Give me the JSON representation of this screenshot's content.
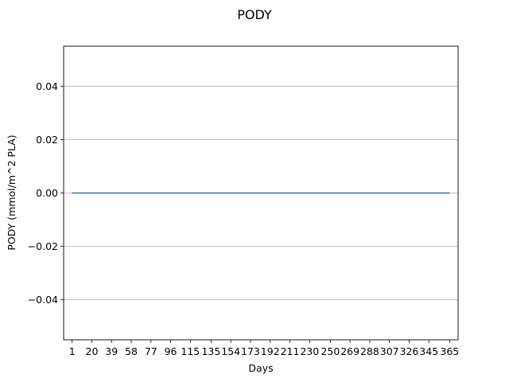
{
  "chart_data": {
    "type": "line",
    "title": "PODY",
    "xlabel": "Days",
    "ylabel": "PODY (mmol/m^2 PLA)",
    "xlim": [
      -7.2,
      373.2
    ],
    "ylim": [
      -0.055,
      0.055
    ],
    "x_ticks": [
      1,
      20,
      39,
      58,
      77,
      96,
      115,
      135,
      154,
      173,
      192,
      211,
      230,
      250,
      269,
      288,
      307,
      326,
      345,
      365
    ],
    "y_ticks": [
      -0.04,
      -0.02,
      0.0,
      0.02,
      0.04
    ],
    "y_tick_labels": [
      "−0.04",
      "−0.02",
      "0.00",
      "0.02",
      "0.04"
    ],
    "grid": "y",
    "series": [
      {
        "x": [
          1,
          365
        ],
        "y": [
          0,
          0
        ],
        "color": "#1f77b4"
      }
    ]
  }
}
